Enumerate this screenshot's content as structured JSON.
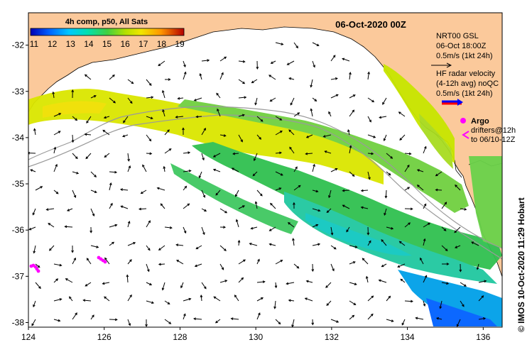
{
  "map": {
    "title": "06-Oct-2020 00Z",
    "colorbar": {
      "label": "4h comp, p50, All Sats",
      "ticks": [
        "11",
        "12",
        "13",
        "14",
        "15",
        "16",
        "17",
        "18",
        "19"
      ],
      "colors": [
        "#0000b4",
        "#0050ff",
        "#00b4ff",
        "#00e6c8",
        "#2ad46e",
        "#8cd800",
        "#e6e600",
        "#ffaa00",
        "#ff4000",
        "#b40000"
      ]
    },
    "axes": {
      "lon_ticks": [
        "124",
        "126",
        "128",
        "130",
        "132",
        "134",
        "136"
      ],
      "lat_ticks": [
        "-32",
        "-33",
        "-34",
        "-35",
        "-36",
        "-37",
        "-38"
      ],
      "lon_range": [
        124,
        136.5
      ],
      "lat_range": [
        -38.1,
        -31.3
      ]
    },
    "legend": {
      "nrt_line1": "NRT00 GSL",
      "nrt_line2": "06-Oct 18:00Z",
      "nrt_line3": "0.5m/s (1kt 24h)",
      "hf_line1": "HF radar velocity",
      "hf_line2": "(4-12h avg) noQC",
      "hf_line3": "0.5m/s (1kt 24h)",
      "argo_label": "Argo",
      "drifters_line1": "drifters@12h",
      "drifters_line2": "to 06/10-12Z"
    },
    "credit": "© IMOS 10-Oct-2020 11:29 Hobart",
    "colors": {
      "land": "#fbc99b",
      "argo": "#ff00ff",
      "hf_arrow": "#0000ff",
      "hf_arrow_shadow": "#ff0000"
    }
  }
}
